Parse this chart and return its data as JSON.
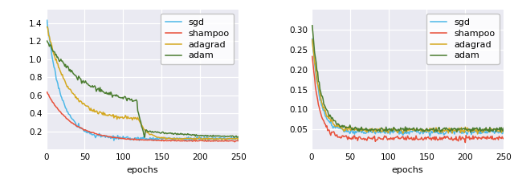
{
  "colors": {
    "sgd": "#4db8e8",
    "shampoo": "#e8503a",
    "adagrad": "#d4a820",
    "adam": "#4a7c2f"
  },
  "xlabel": "epochs",
  "xlim": [
    0,
    250
  ],
  "xticks": [
    0,
    50,
    100,
    150,
    200,
    250
  ],
  "left_ylim": [
    0.0,
    1.55
  ],
  "left_yticks": [
    0.2,
    0.4,
    0.6,
    0.8,
    1.0,
    1.2,
    1.4
  ],
  "right_ylim": [
    0.0,
    0.35
  ],
  "right_yticks": [
    0.05,
    0.1,
    0.15,
    0.2,
    0.25,
    0.3
  ],
  "legend_labels": [
    "sgd",
    "shampoo",
    "adagrad",
    "adam"
  ],
  "bg_color": "#eaeaf2",
  "grid_color": "#ffffff"
}
